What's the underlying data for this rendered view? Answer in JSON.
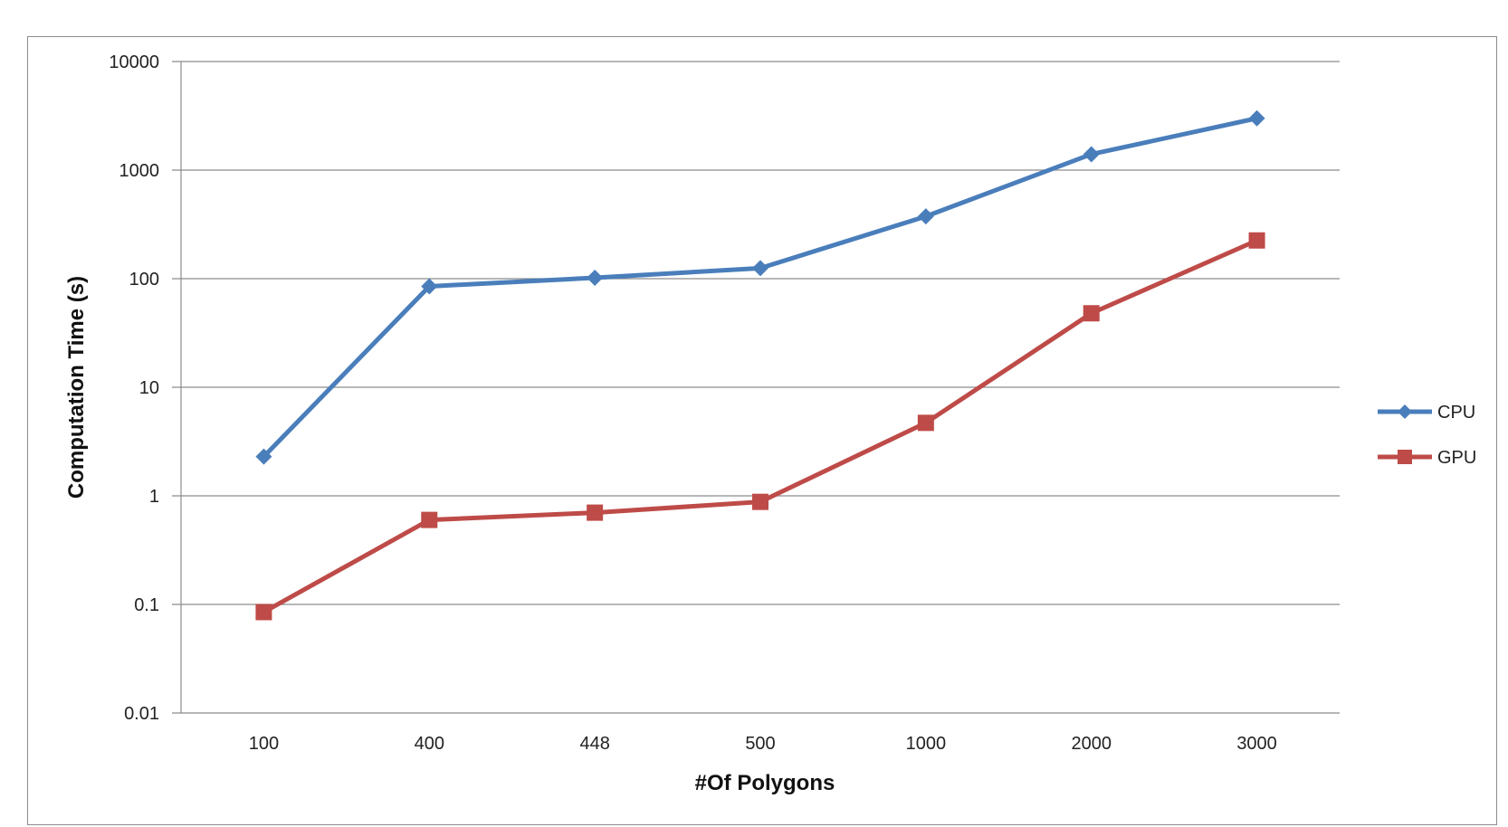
{
  "chart_data": {
    "type": "line",
    "title": "",
    "xlabel": "#Of Polygons",
    "ylabel": "Computation Time (s)",
    "yscale": "log",
    "ylim": [
      0.01,
      10000
    ],
    "y_ticks": [
      "10000",
      "1000",
      "100",
      "10",
      "1",
      "0.1",
      "0.01"
    ],
    "categories": [
      "100",
      "400",
      "448",
      "500",
      "1000",
      "2000",
      "3000"
    ],
    "grid": true,
    "legend_position": "right",
    "series": [
      {
        "name": "CPU",
        "color": "#4a7ebb",
        "marker": "diamond",
        "values": [
          2.3,
          85,
          102,
          125,
          375,
          1400,
          3000
        ]
      },
      {
        "name": "GPU",
        "color": "#be4b48",
        "marker": "square",
        "values": [
          0.085,
          0.6,
          0.7,
          0.88,
          4.7,
          48,
          225
        ]
      }
    ]
  }
}
